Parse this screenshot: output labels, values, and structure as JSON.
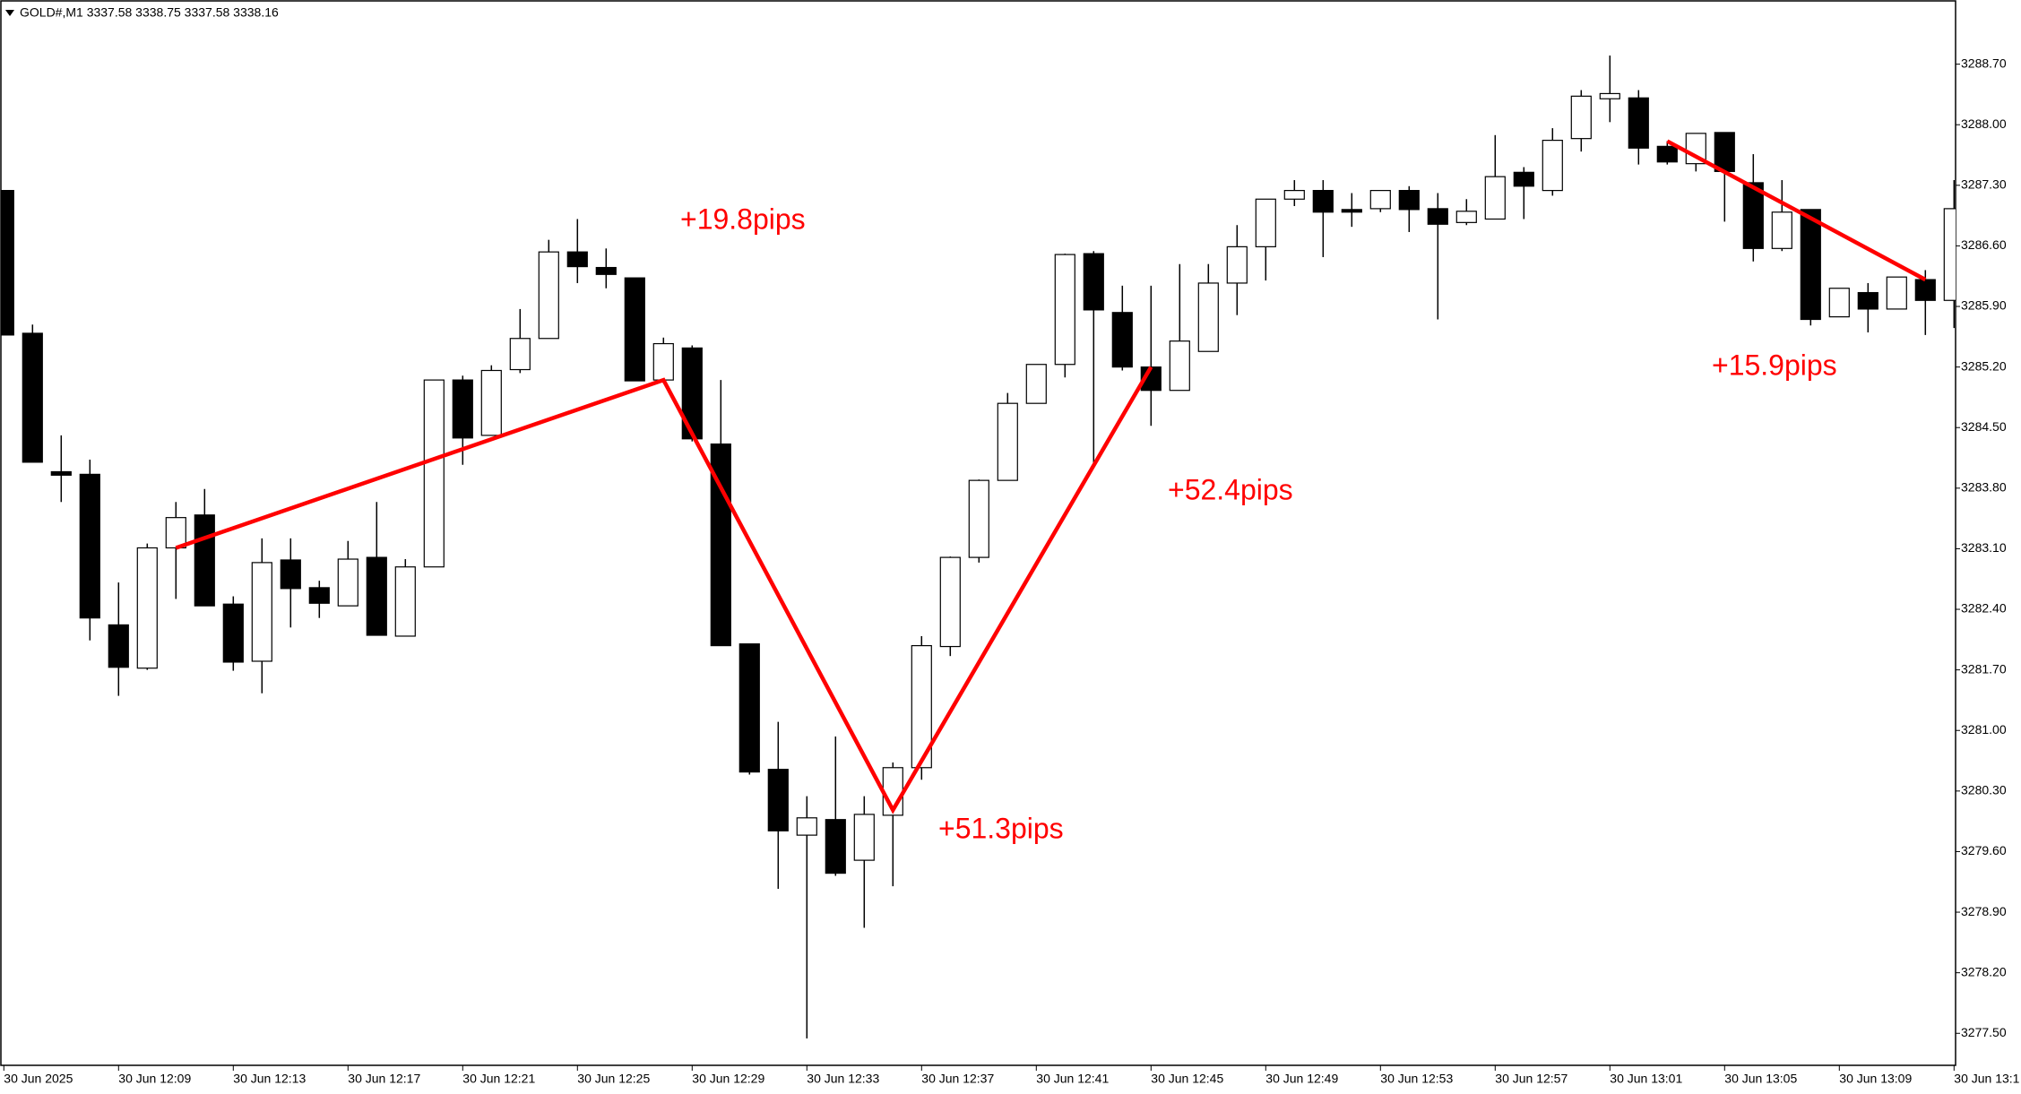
{
  "chart_data": {
    "type": "candlestick",
    "title": "GOLD#,M1  3337.58 3338.75 3337.58 3338.16",
    "categories": [
      "30 Jun 2025",
      null,
      null,
      null,
      "30 Jun 12:09",
      null,
      null,
      null,
      "30 Jun 12:13",
      null,
      null,
      null,
      "30 Jun 12:17",
      null,
      null,
      null,
      "30 Jun 12:21",
      null,
      null,
      null,
      "30 Jun 12:25",
      null,
      null,
      null,
      "30 Jun 12:29",
      null,
      null,
      null,
      "30 Jun 12:33",
      null,
      null,
      null,
      "30 Jun 12:37",
      null,
      null,
      null,
      "30 Jun 12:41",
      null,
      null,
      null,
      "30 Jun 12:45",
      null,
      null,
      null,
      "30 Jun 12:49",
      null,
      null,
      null,
      "30 Jun 12:53",
      null,
      null,
      null,
      "30 Jun 12:57",
      null,
      null,
      null,
      "30 Jun 13:01",
      null,
      null,
      null,
      "30 Jun 13:05",
      null,
      null,
      null,
      "30 Jun 13:09",
      null,
      null,
      null,
      "30 Jun 13:1"
    ],
    "open": [
      3287.24,
      3285.59,
      3283.99,
      3283.96,
      3282.22,
      3281.72,
      3283.11,
      3283.49,
      3282.46,
      3281.8,
      3282.97,
      3282.65,
      3282.44,
      3283.0,
      3282.09,
      3282.89,
      3285.05,
      3284.41,
      3285.17,
      3285.53,
      3286.53,
      3286.35,
      3286.23,
      3285.05,
      3285.42,
      3284.31,
      3282.0,
      3280.55,
      3279.79,
      3279.97,
      3279.5,
      3280.02,
      3280.57,
      3281.97,
      3283.0,
      3283.89,
      3284.78,
      3285.23,
      3286.51,
      3285.83,
      3285.2,
      3284.93,
      3285.38,
      3286.17,
      3286.59,
      3287.14,
      3287.24,
      3287.02,
      3287.03,
      3287.24,
      3287.03,
      3286.87,
      3286.91,
      3287.45,
      3287.24,
      3287.84,
      3288.3,
      3288.31,
      3287.75,
      3287.55,
      3287.91,
      3287.33,
      3286.57,
      3287.02,
      3285.78,
      3286.06,
      3285.87,
      3286.21,
      3285.97
    ],
    "high": [
      3287.24,
      3285.69,
      3284.41,
      3284.13,
      3282.71,
      3283.16,
      3283.64,
      3283.79,
      3282.55,
      3283.22,
      3283.22,
      3282.73,
      3283.19,
      3283.64,
      3282.98,
      3285.05,
      3285.1,
      3285.22,
      3285.87,
      3286.67,
      3286.91,
      3286.57,
      3286.23,
      3285.54,
      3285.45,
      3285.05,
      3282.0,
      3281.1,
      3280.24,
      3280.93,
      3280.24,
      3280.63,
      3282.09,
      3283.01,
      3283.9,
      3284.9,
      3285.23,
      3286.51,
      3286.54,
      3286.14,
      3286.14,
      3286.39,
      3286.39,
      3286.84,
      3287.14,
      3287.36,
      3287.36,
      3287.21,
      3287.24,
      3287.29,
      3287.21,
      3287.14,
      3287.88,
      3287.51,
      3287.96,
      3288.4,
      3288.8,
      3288.4,
      3287.81,
      3287.9,
      3287.91,
      3287.66,
      3287.36,
      3287.02,
      3286.11,
      3286.17,
      3286.24,
      3286.32,
      3287.36
    ],
    "low": [
      3285.57,
      3284.1,
      3283.64,
      3282.04,
      3281.4,
      3281.7,
      3282.52,
      3282.44,
      3281.69,
      3281.43,
      3282.19,
      3282.3,
      3282.44,
      3282.1,
      3282.09,
      3282.89,
      3284.07,
      3284.41,
      3285.13,
      3285.53,
      3286.17,
      3286.11,
      3285.04,
      3285.01,
      3284.34,
      3281.98,
      3280.49,
      3279.17,
      3277.44,
      3279.32,
      3278.72,
      3279.2,
      3280.43,
      3281.86,
      3282.94,
      3283.89,
      3284.78,
      3285.08,
      3284.08,
      3285.16,
      3284.52,
      3284.93,
      3285.38,
      3285.8,
      3286.2,
      3287.06,
      3286.47,
      3286.82,
      3286.99,
      3286.76,
      3285.75,
      3286.84,
      3286.91,
      3286.91,
      3287.18,
      3287.69,
      3288.03,
      3287.54,
      3287.54,
      3287.46,
      3286.88,
      3286.42,
      3286.54,
      3285.68,
      3285.78,
      3285.6,
      3285.87,
      3285.57,
      3285.65
    ],
    "close": [
      3285.57,
      3284.1,
      3283.95,
      3282.3,
      3281.73,
      3283.11,
      3283.46,
      3282.44,
      3281.79,
      3282.94,
      3282.64,
      3282.47,
      3282.98,
      3282.1,
      3282.89,
      3285.05,
      3284.38,
      3285.16,
      3285.53,
      3286.53,
      3286.36,
      3286.27,
      3285.04,
      3285.47,
      3284.37,
      3281.98,
      3280.52,
      3279.84,
      3279.99,
      3279.35,
      3280.03,
      3280.57,
      3281.98,
      3283.0,
      3283.89,
      3284.78,
      3285.23,
      3286.5,
      3285.86,
      3285.2,
      3284.93,
      3285.5,
      3286.17,
      3286.59,
      3287.14,
      3287.24,
      3286.99,
      3286.99,
      3287.24,
      3287.02,
      3286.85,
      3287.0,
      3287.4,
      3287.29,
      3287.82,
      3288.33,
      3288.36,
      3287.73,
      3287.57,
      3287.9,
      3287.46,
      3286.57,
      3286.99,
      3285.75,
      3286.11,
      3285.87,
      3286.24,
      3285.97,
      3287.03
    ],
    "up_color": "#ffffff",
    "down_color": "#000000",
    "ylim": [
      3277.13,
      3289.4
    ],
    "yticks": [
      {
        "value": 3288.7,
        "label": "3288.70"
      },
      {
        "value": 3288,
        "label": "3288.00"
      },
      {
        "value": 3287.3,
        "label": "3287.30"
      },
      {
        "value": 3286.6,
        "label": "3286.60"
      },
      {
        "value": 3285.9,
        "label": "3285.90"
      },
      {
        "value": 3285.2,
        "label": "3285.20"
      },
      {
        "value": 3284.5,
        "label": "3284.50"
      },
      {
        "value": 3283.8,
        "label": "3283.80"
      },
      {
        "value": 3283.1,
        "label": "3283.10"
      },
      {
        "value": 3282.4,
        "label": "3282.40"
      },
      {
        "value": 3281.7,
        "label": "3281.70"
      },
      {
        "value": 3281,
        "label": "3281.00"
      },
      {
        "value": 3280.3,
        "label": "3280.30"
      },
      {
        "value": 3279.6,
        "label": "3279.60"
      },
      {
        "value": 3278.9,
        "label": "3278.90"
      },
      {
        "value": 3278.2,
        "label": "3278.20"
      },
      {
        "value": 3277.5,
        "label": "3277.50"
      }
    ],
    "lines": [
      {
        "color": "#ff0000",
        "x": [
          6,
          23,
          31,
          40
        ],
        "y": [
          3283.11,
          3285.05,
          3280.08,
          3285.2
        ]
      },
      {
        "color": "#ff0000",
        "x": [
          58,
          67
        ],
        "y": [
          3287.81,
          3286.21
        ]
      }
    ],
    "annotations": [
      "+19.8pips",
      "+51.3pips",
      "+52.4pips",
      "+15.9pips"
    ],
    "annotation_color": "#ff0000"
  }
}
